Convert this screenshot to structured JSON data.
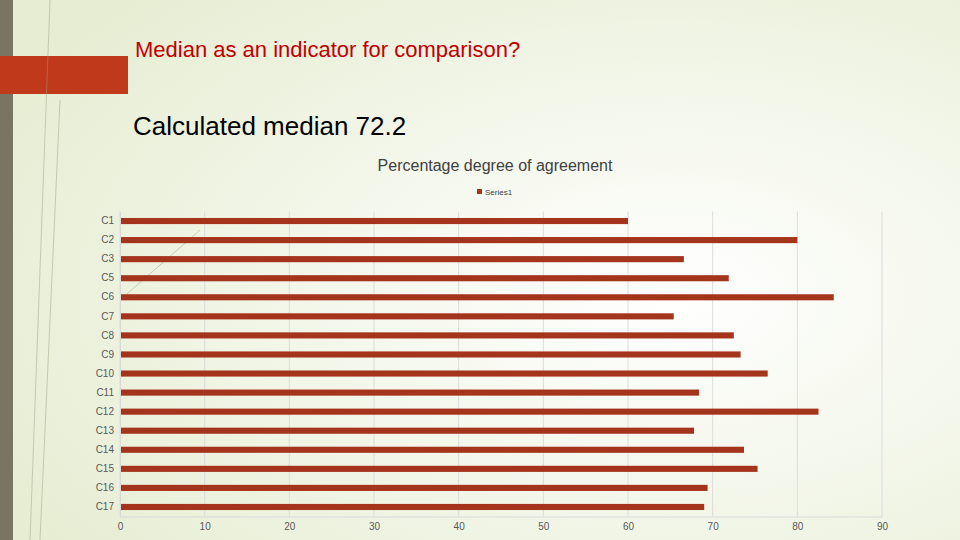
{
  "slide": {
    "title": "Median as an indicator for comparison?",
    "subtitle": "Calculated median 72.2"
  },
  "chart_data": {
    "type": "bar",
    "orientation": "horizontal",
    "title": "Percentage degree of agreement",
    "categories": [
      "C1",
      "C2",
      "C3",
      "C5",
      "C6",
      "C7",
      "C8",
      "C9",
      "C10",
      "C11",
      "C12",
      "C13",
      "C14",
      "C15",
      "C16",
      "C17"
    ],
    "series": [
      {
        "name": "Series1",
        "color": "#a5341c",
        "values": [
          60.0,
          80.0,
          66.6,
          71.9,
          84.3,
          65.4,
          72.5,
          73.3,
          76.5,
          68.4,
          82.5,
          67.8,
          73.7,
          75.3,
          69.4,
          69.0
        ]
      }
    ],
    "xlim": [
      0,
      90
    ],
    "xticks": [
      0,
      10,
      20,
      30,
      40,
      50,
      60,
      70,
      80,
      90
    ],
    "grid": true,
    "legend": "top"
  }
}
